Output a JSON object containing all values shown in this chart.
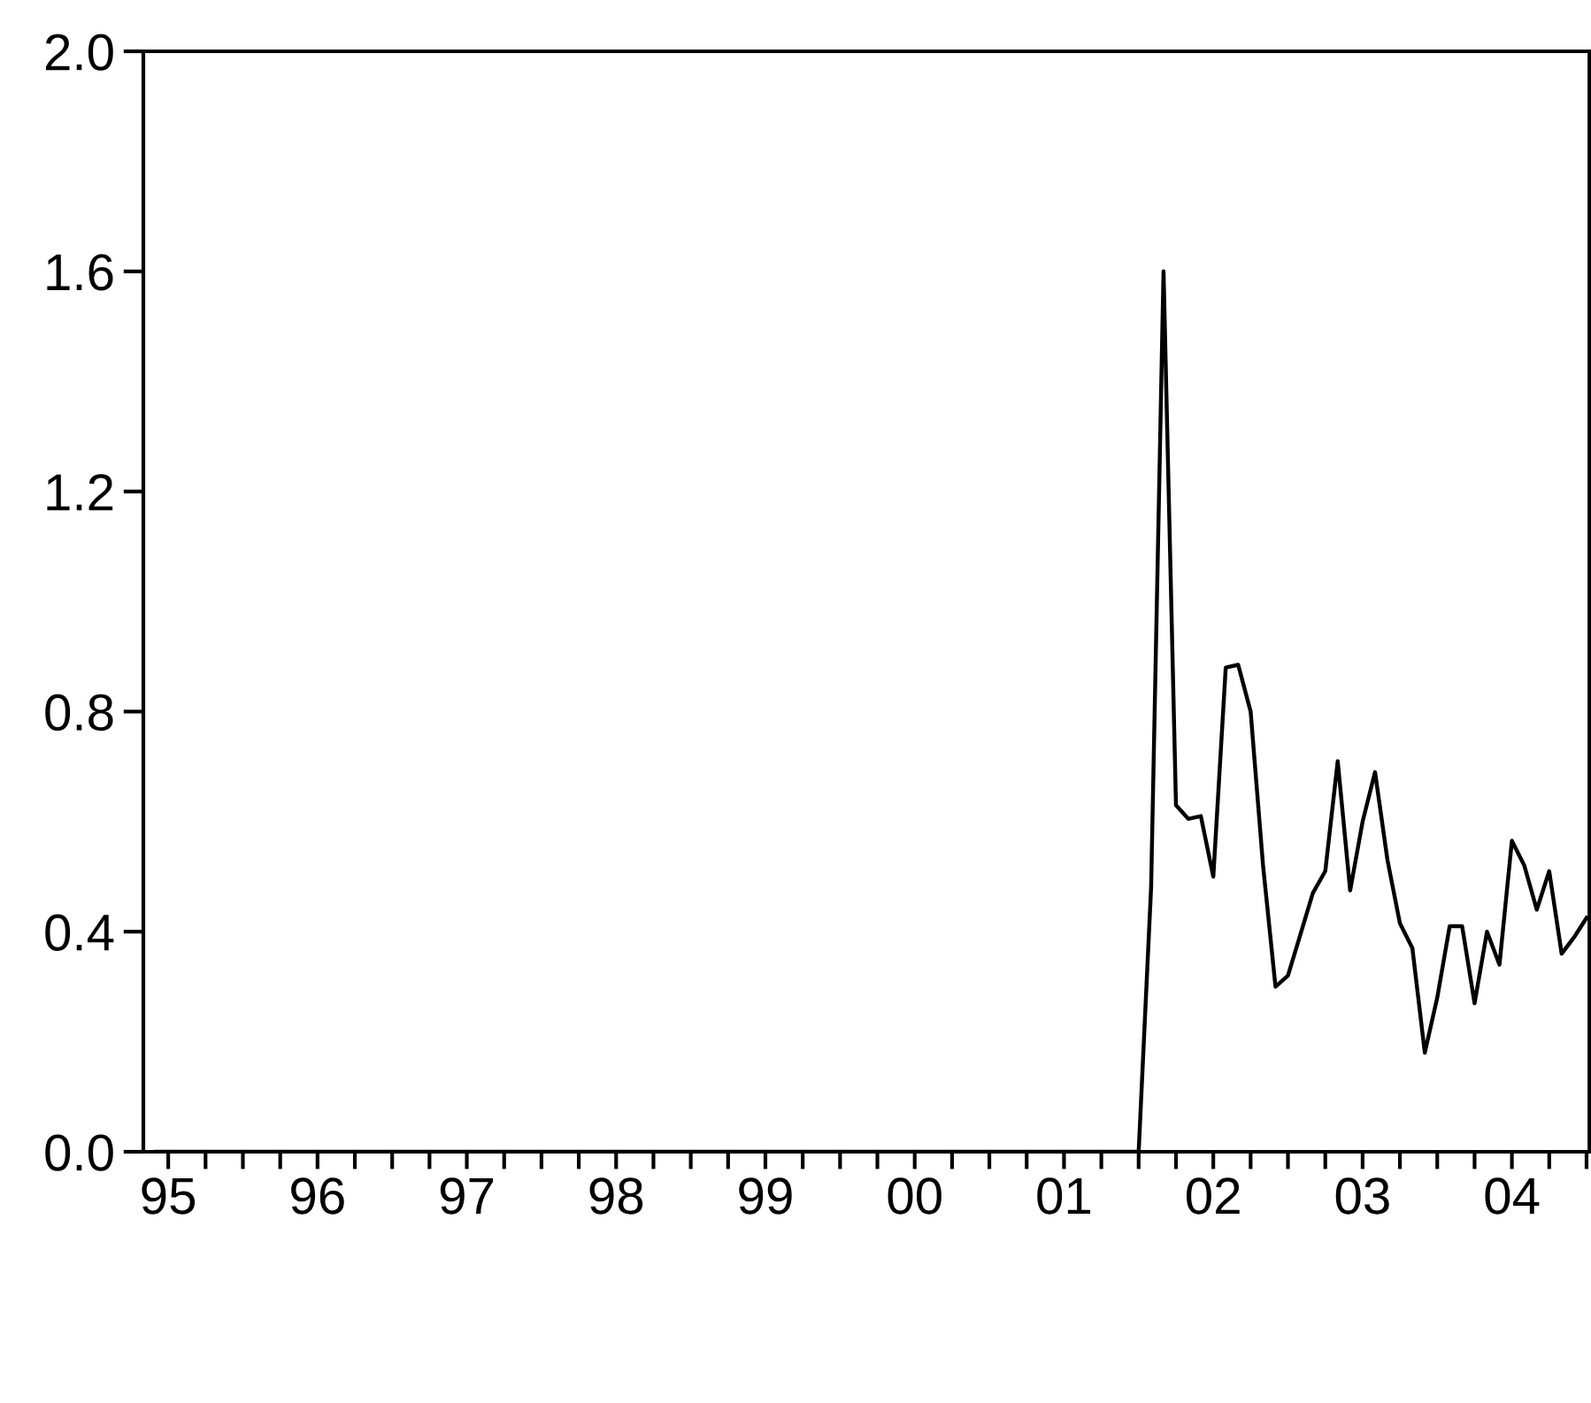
{
  "chart_data": {
    "type": "line",
    "x": [
      "1995-06",
      "2001-12",
      "2002-01",
      "2002-02",
      "2002-03",
      "2002-04",
      "2002-05",
      "2002-06",
      "2002-07",
      "2002-08",
      "2002-09",
      "2002-10",
      "2002-11",
      "2002-12",
      "2003-01",
      "2003-02",
      "2003-03",
      "2003-04",
      "2003-05",
      "2003-06",
      "2003-07",
      "2003-08",
      "2003-09",
      "2003-10",
      "2003-11",
      "2003-12",
      "2004-01",
      "2004-02",
      "2004-03",
      "2004-04",
      "2004-05",
      "2004-06",
      "2004-07",
      "2004-08",
      "2004-09",
      "2004-10",
      "2004-11",
      "2004-12",
      "2005-01"
    ],
    "series": [
      {
        "color": "#000000",
        "values": [
          0,
          0,
          0,
          0.48,
          1.6,
          0.63,
          0.605,
          0.61,
          0.5,
          0.88,
          0.885,
          0.8,
          0.52,
          0.3,
          0.32,
          0.395,
          0.47,
          0.51,
          0.71,
          0.475,
          0.6,
          0.69,
          0.53,
          0.415,
          0.37,
          0.18,
          0.28,
          0.41,
          0.41,
          0.27,
          0.4,
          0.34,
          0.565,
          0.52,
          0.44,
          0.51,
          0.36,
          0.39,
          0.425
        ]
      }
    ],
    "xlim": [
      "1995-05",
      "2005-01-08"
    ],
    "xticks": [
      {
        "value": "1995-07",
        "label": "95"
      },
      {
        "value": "1996-07",
        "label": "96"
      },
      {
        "value": "1997-07",
        "label": "97"
      },
      {
        "value": "1998-07",
        "label": "98"
      },
      {
        "value": "1999-07",
        "label": "99"
      },
      {
        "value": "2000-07",
        "label": "00"
      },
      {
        "value": "2001-07",
        "label": "01"
      },
      {
        "value": "2002-07",
        "label": "02"
      },
      {
        "value": "2003-07",
        "label": "03"
      },
      {
        "value": "2004-07",
        "label": "04"
      },
      {
        "value": "1995-10",
        "label": null
      },
      {
        "value": "1996-01",
        "label": null
      },
      {
        "value": "1996-04",
        "label": null
      },
      {
        "value": "1996-10",
        "label": null
      },
      {
        "value": "1997-01",
        "label": null
      },
      {
        "value": "1997-04",
        "label": null
      },
      {
        "value": "1997-10",
        "label": null
      },
      {
        "value": "1998-01",
        "label": null
      },
      {
        "value": "1998-04",
        "label": null
      },
      {
        "value": "1998-10",
        "label": null
      },
      {
        "value": "1999-01",
        "label": null
      },
      {
        "value": "1999-04",
        "label": null
      },
      {
        "value": "1999-10",
        "label": null
      },
      {
        "value": "2000-01",
        "label": null
      },
      {
        "value": "2000-04",
        "label": null
      },
      {
        "value": "2000-10",
        "label": null
      },
      {
        "value": "2001-01",
        "label": null
      },
      {
        "value": "2001-04",
        "label": null
      },
      {
        "value": "2001-10",
        "label": null
      },
      {
        "value": "2002-01",
        "label": null
      },
      {
        "value": "2002-04",
        "label": null
      },
      {
        "value": "2002-10",
        "label": null
      },
      {
        "value": "2003-01",
        "label": null
      },
      {
        "value": "2003-04",
        "label": null
      },
      {
        "value": "2003-10",
        "label": null
      },
      {
        "value": "2004-01",
        "label": null
      },
      {
        "value": "2004-04",
        "label": null
      },
      {
        "value": "2004-10",
        "label": null
      },
      {
        "value": "2005-01",
        "label": null
      }
    ],
    "ylim": [
      0,
      2.0
    ],
    "yticks": [
      {
        "value": 0,
        "label": "0.0"
      },
      {
        "value": 0.4,
        "label": "0.4"
      },
      {
        "value": 0.8,
        "label": "0.8"
      },
      {
        "value": 1.2,
        "label": "1.2"
      },
      {
        "value": 1.6,
        "label": "1.6"
      },
      {
        "value": 2.0,
        "label": "2.0"
      }
    ],
    "grid": false,
    "marker": "none",
    "line_style": "solid"
  }
}
